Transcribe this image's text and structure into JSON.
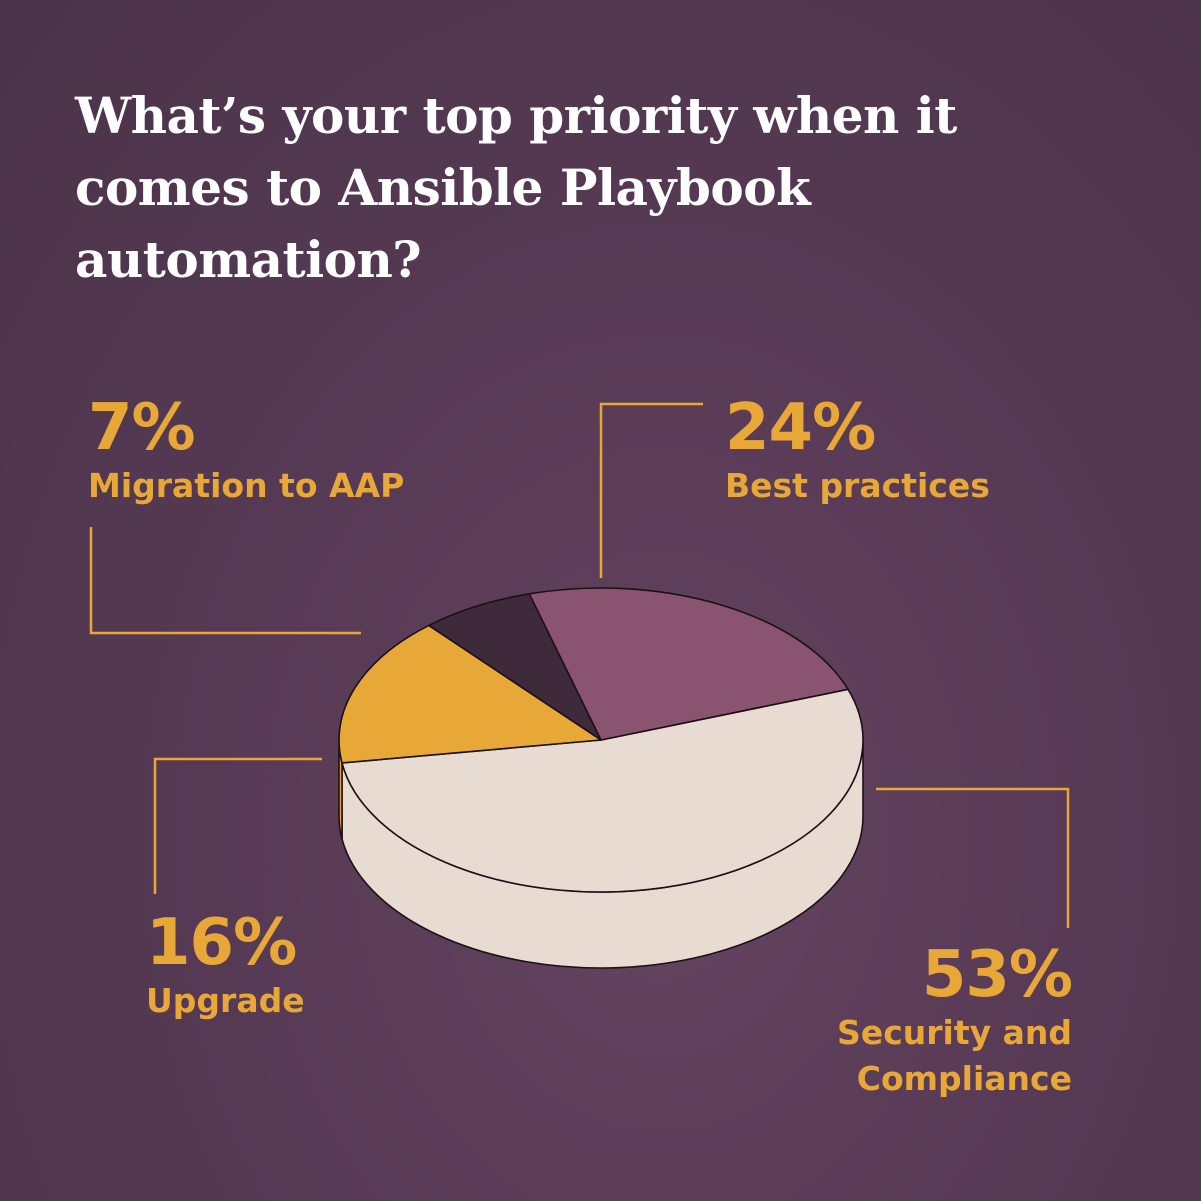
{
  "title_lines": [
    "What’s your top priority when it",
    "comes to Ansible Playbook",
    "automation?"
  ],
  "colors": {
    "accent": "#e8a838",
    "security_and_compliance": "#e8dcd2",
    "best_practices": "#8a5470",
    "migration_to_aap": "#3e2a3b",
    "upgrade": "#e8a838"
  },
  "chart_data": {
    "type": "pie",
    "title": "What’s your top priority when it comes to Ansible Playbook automation?",
    "slices": [
      {
        "label": "Security and Compliance",
        "value": 53,
        "value_label": "53%"
      },
      {
        "label": "Upgrade",
        "value": 16,
        "value_label": "16%"
      },
      {
        "label": "Migration to AAP",
        "value": 7,
        "value_label": "7%"
      },
      {
        "label": "Best practices",
        "value": 24,
        "value_label": "24%"
      }
    ]
  }
}
